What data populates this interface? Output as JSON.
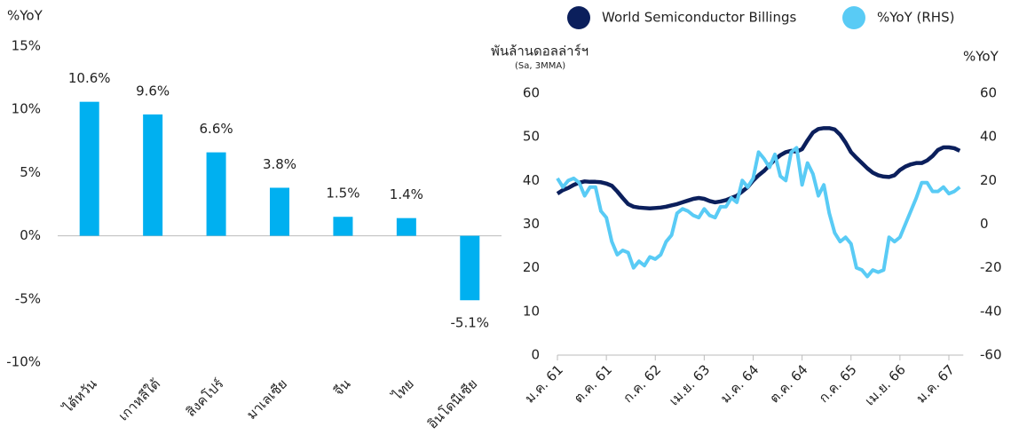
{
  "chart_data": [
    {
      "type": "bar",
      "y_label": "%YoY",
      "categories": [
        "ไต้หวัน",
        "เกาหลีใต้",
        "สิงคโปร์",
        "มาเลเซีย",
        "จีน",
        "ไทย",
        "อินโดนีเซีย"
      ],
      "values": [
        10.6,
        9.6,
        6.6,
        3.8,
        1.5,
        1.4,
        -5.1
      ],
      "value_labels": [
        "10.6%",
        "9.6%",
        "6.6%",
        "3.8%",
        "1.5%",
        "1.4%",
        "-5.1%"
      ],
      "color": "#00b0f0",
      "ylim": [
        -10,
        15
      ],
      "yticks": [
        {
          "value": -10,
          "label": "-10%"
        },
        {
          "value": -5,
          "label": "-5%"
        },
        {
          "value": 0,
          "label": "0%"
        },
        {
          "value": 5,
          "label": "5%"
        },
        {
          "value": 10,
          "label": "10%"
        },
        {
          "value": 15,
          "label": "15%"
        }
      ]
    },
    {
      "type": "line",
      "y_label": "พันล้านดอลล่าร์ฯ",
      "y_sublabel": "(Sa, 3MMA)",
      "y2_label": "%YoY",
      "categories": [
        "ม.ค. 61",
        null,
        null,
        null,
        null,
        null,
        null,
        null,
        null,
        "ต.ค. 61",
        null,
        null,
        null,
        null,
        null,
        null,
        null,
        null,
        "ก.ค. 62",
        null,
        null,
        null,
        null,
        null,
        null,
        null,
        null,
        "เม.ย. 63",
        null,
        null,
        null,
        null,
        null,
        null,
        null,
        null,
        "ม.ค. 64",
        null,
        null,
        null,
        null,
        null,
        null,
        null,
        null,
        "ต.ค. 64",
        null,
        null,
        null,
        null,
        null,
        null,
        null,
        null,
        "ก.ค. 65",
        null,
        null,
        null,
        null,
        null,
        null,
        null,
        null,
        "เม.ย. 66",
        null,
        null,
        null,
        null,
        null,
        null,
        null,
        null,
        "ม.ค. 67",
        null,
        null
      ],
      "series": [
        {
          "name": "World Semiconductor Billings",
          "color": "#0b1f5c",
          "values": [
            37,
            37.8,
            38.3,
            39,
            39.5,
            39.8,
            39.7,
            39.7,
            39.6,
            39.3,
            38.8,
            37.5,
            36,
            34.6,
            34,
            33.8,
            33.7,
            33.6,
            33.7,
            33.8,
            34,
            34.3,
            34.6,
            35,
            35.4,
            35.8,
            36,
            35.8,
            35.3,
            35,
            35.2,
            35.5,
            36,
            36.5,
            37.5,
            38.5,
            40,
            41.2,
            42.2,
            43.5,
            44.8,
            45.8,
            46.5,
            46.8,
            46.6,
            47.2,
            49.2,
            51,
            51.8,
            52,
            52,
            51.7,
            50.5,
            48.7,
            46.5,
            45.2,
            44,
            42.8,
            41.8,
            41.2,
            40.9,
            40.8,
            41.2,
            42.4,
            43.2,
            43.7,
            44,
            44,
            44.6,
            45.6,
            47,
            47.6,
            47.6,
            47.4,
            46.8
          ]
        },
        {
          "name": "%YoY (RHS)",
          "color": "#59cbf5",
          "axis": "y2",
          "values": [
            21,
            17,
            20,
            21,
            19,
            13,
            17,
            17,
            6,
            3,
            -8,
            -14,
            -12,
            -13,
            -20,
            -17,
            -19,
            -15,
            -16,
            -14,
            -8,
            -5,
            5,
            7,
            6,
            4,
            3,
            7,
            4,
            3,
            8,
            8,
            12,
            10,
            20,
            17,
            21,
            33,
            30,
            26,
            32,
            22,
            20,
            33,
            35,
            18,
            28,
            23,
            13,
            18,
            5,
            -4,
            -8,
            -6,
            -9,
            -20,
            -21,
            -24,
            -21,
            -22,
            -21,
            -6,
            -8,
            -6,
            0,
            6,
            12,
            19,
            19,
            15,
            15,
            17,
            14,
            15,
            17
          ]
        }
      ],
      "ylim": [
        0,
        60
      ],
      "yticks": [
        0,
        10,
        20,
        30,
        40,
        50,
        60
      ],
      "y2lim": [
        -60,
        60
      ],
      "y2ticks": [
        -60,
        -40,
        -20,
        0,
        20,
        40,
        60
      ],
      "legend": "top"
    }
  ]
}
